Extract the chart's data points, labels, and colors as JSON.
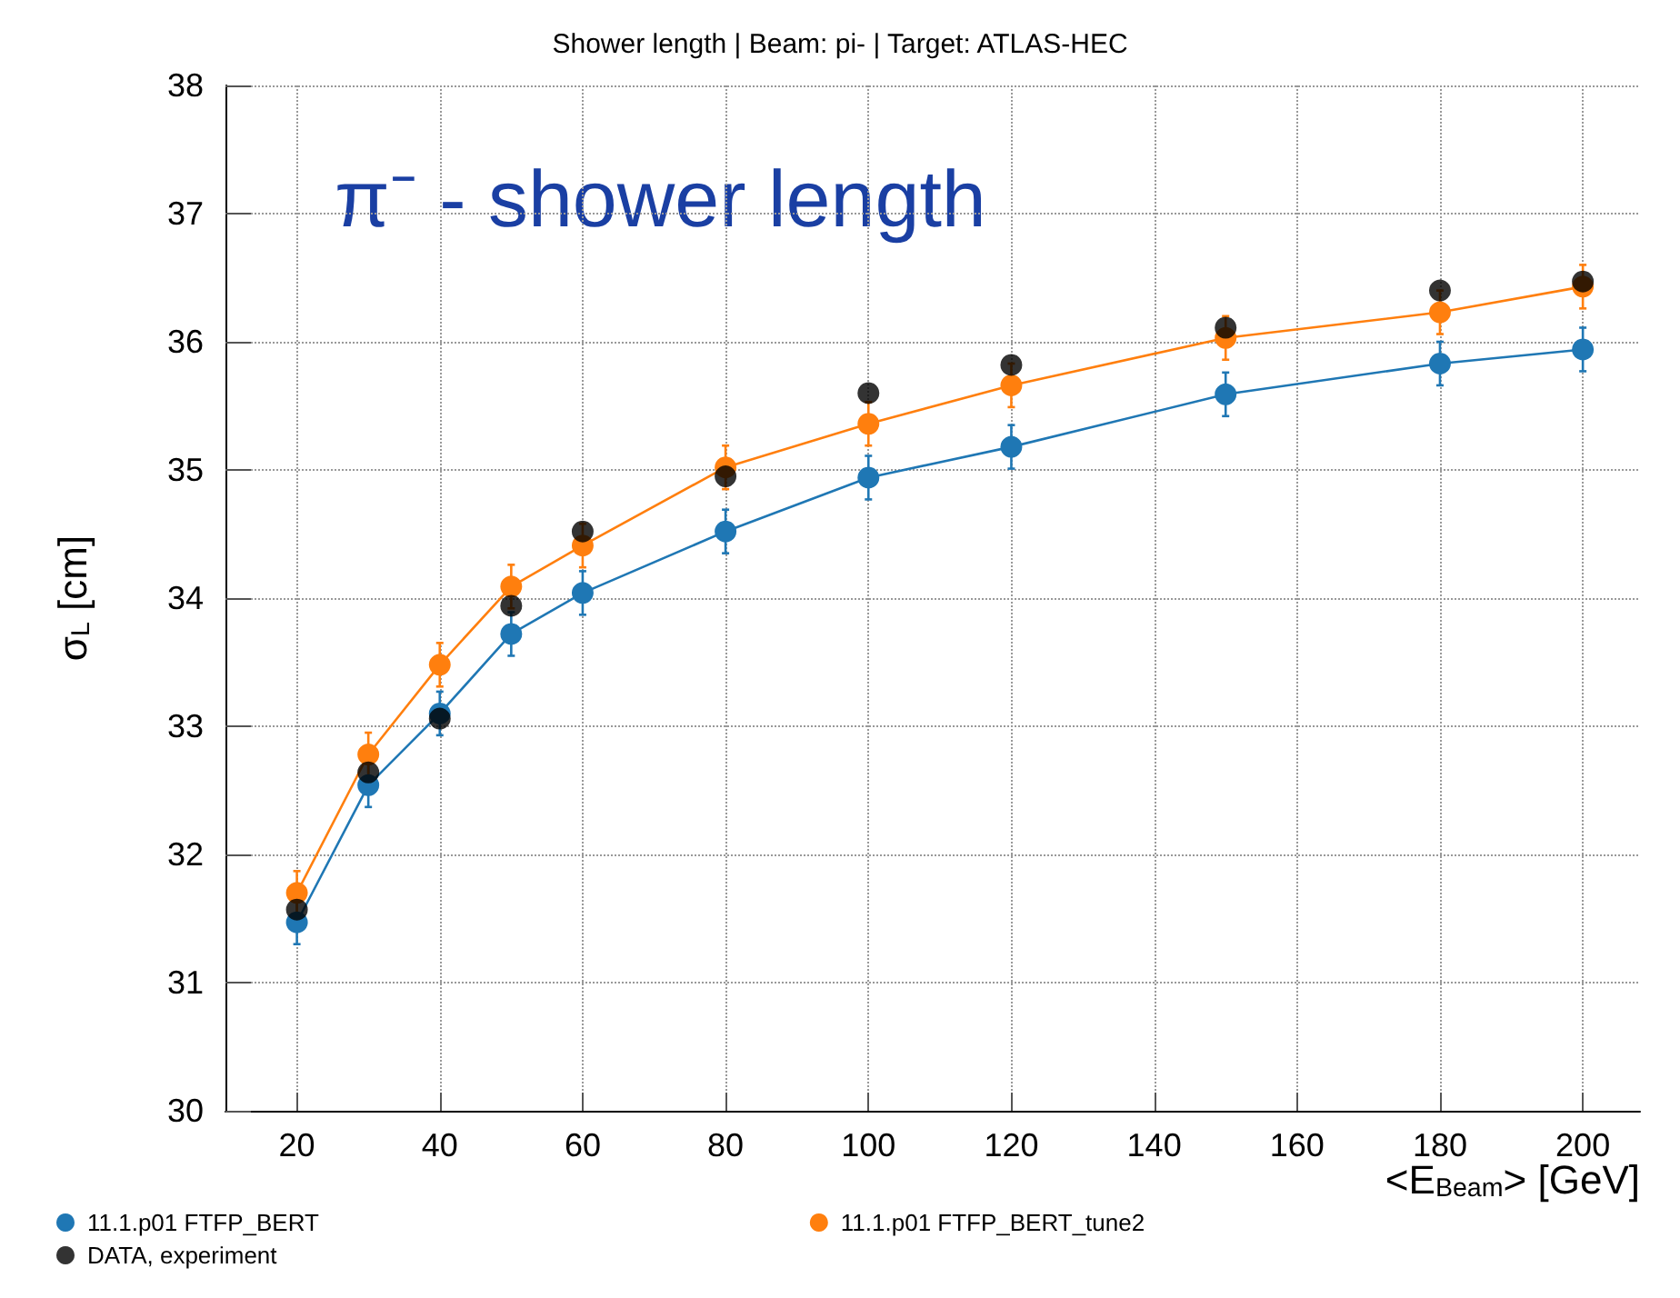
{
  "chart_data": {
    "type": "line",
    "title": "Shower length | Beam: pi- | Target: ATLAS-HEC",
    "xlabel": "<E$_{Beam}$> [GeV]",
    "ylabel": "σ$_{L}$ [cm]",
    "annotations": [
      "π⁻ - shower length"
    ],
    "x": [
      20,
      30,
      40,
      50,
      60,
      80,
      100,
      120,
      150,
      180,
      200
    ],
    "series": [
      {
        "name": "11.1.p01 FTFP_BERT",
        "color": "#1f77b4",
        "type": "line",
        "values": [
          31.47,
          32.54,
          33.1,
          33.72,
          34.04,
          34.52,
          34.94,
          35.18,
          35.59,
          35.83,
          35.94
        ],
        "errors": [
          0.17,
          0.17,
          0.17,
          0.17,
          0.17,
          0.17,
          0.17,
          0.17,
          0.17,
          0.17,
          0.17
        ]
      },
      {
        "name": "11.1.p01 FTFP_BERT_tune2",
        "color": "#ff7f0e",
        "type": "line",
        "values": [
          31.7,
          32.78,
          33.48,
          34.09,
          34.41,
          35.02,
          35.36,
          35.66,
          36.03,
          36.23,
          36.43
        ],
        "errors": [
          0.17,
          0.17,
          0.17,
          0.17,
          0.17,
          0.17,
          0.17,
          0.17,
          0.17,
          0.17,
          0.17
        ]
      },
      {
        "name": "DATA, experiment",
        "color": "#000000",
        "type": "scatter",
        "values": [
          31.57,
          32.64,
          33.06,
          33.94,
          34.52,
          34.95,
          35.6,
          35.82,
          36.11,
          36.4,
          36.47
        ]
      }
    ],
    "xlim": [
      10,
      208
    ],
    "xticks": [
      20,
      40,
      60,
      80,
      100,
      120,
      140,
      160,
      180,
      200
    ],
    "ylim": [
      30,
      38
    ],
    "yticks": [
      30,
      31,
      32,
      33,
      34,
      35,
      36,
      37,
      38
    ],
    "grid": true,
    "legend": "bottom",
    "marker": "circle",
    "line_style": "solid"
  }
}
